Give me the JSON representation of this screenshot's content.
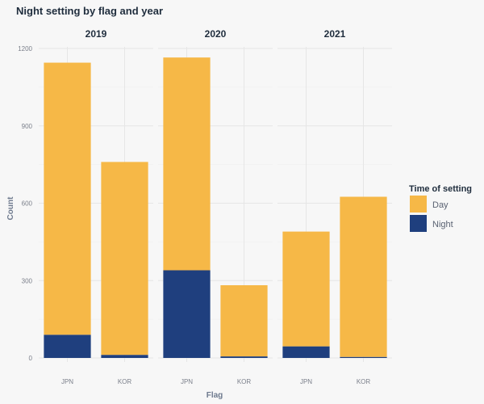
{
  "chart_data": {
    "type": "bar",
    "title": "Night setting by flag and year",
    "xlabel": "Flag",
    "ylabel": "Count",
    "ylim": [
      0,
      1200
    ],
    "yticks": [
      0,
      300,
      600,
      900,
      1200
    ],
    "stacked": true,
    "grid": true,
    "legend_position": "right",
    "legend_title": "Time of setting",
    "colors": {
      "Day": "#f6b847",
      "Night": "#1f3f7e"
    },
    "series_order": [
      "Night",
      "Day"
    ],
    "legend_order": [
      "Day",
      "Night"
    ],
    "facets": [
      {
        "label": "2019",
        "categories": [
          "JPN",
          "KOR"
        ],
        "series": [
          {
            "name": "Night",
            "values": [
              90,
              12
            ]
          },
          {
            "name": "Day",
            "values": [
              1055,
              748
            ]
          }
        ]
      },
      {
        "label": "2020",
        "categories": [
          "JPN",
          "KOR"
        ],
        "series": [
          {
            "name": "Night",
            "values": [
              340,
              6
            ]
          },
          {
            "name": "Day",
            "values": [
              825,
              276
            ]
          }
        ]
      },
      {
        "label": "2021",
        "categories": [
          "JPN",
          "KOR"
        ],
        "series": [
          {
            "name": "Night",
            "values": [
              45,
              4
            ]
          },
          {
            "name": "Day",
            "values": [
              445,
              621
            ]
          }
        ]
      }
    ]
  }
}
